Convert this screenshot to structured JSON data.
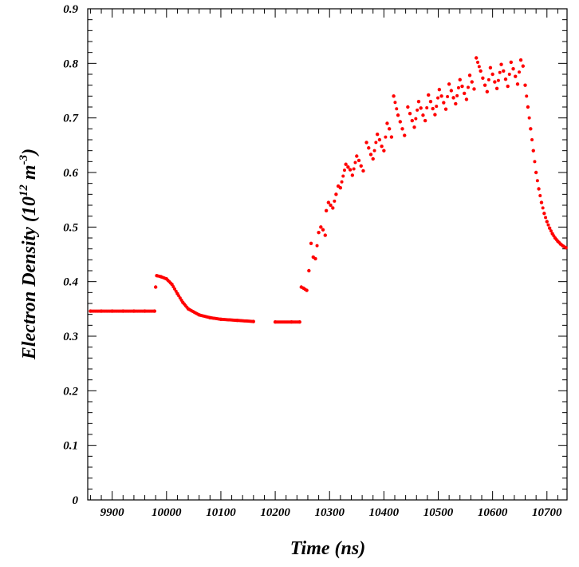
{
  "chart_data": {
    "type": "scatter",
    "title": "",
    "xlabel": "Time (ns)",
    "ylabel_parts": [
      "Electron Density (10",
      "12",
      " m",
      "-3",
      ")"
    ],
    "xlim": [
      9855,
      10737
    ],
    "ylim": [
      0,
      0.9
    ],
    "x_ticks": [
      9900,
      10000,
      10100,
      10200,
      10300,
      10400,
      10500,
      10600,
      10700
    ],
    "y_ticks": [
      0,
      0.1,
      0.2,
      0.3,
      0.4,
      0.5,
      0.6,
      0.7,
      0.8,
      0.9
    ],
    "y_tick_labels": [
      "0",
      "0.1",
      "0.2",
      "0.3",
      "0.4",
      "0.5",
      "0.6",
      "0.7",
      "0.8",
      "0.9"
    ],
    "marker_color": "#ff0000",
    "grid": false,
    "series": [
      {
        "values": [
          [
            9860,
            0.346
          ],
          [
            9880,
            0.346
          ],
          [
            9900,
            0.346
          ],
          [
            9920,
            0.346
          ],
          [
            9940,
            0.346
          ],
          [
            9960,
            0.346
          ],
          [
            9978,
            0.346
          ],
          [
            9980,
            0.39
          ],
          [
            9982,
            0.411
          ],
          [
            9990,
            0.409
          ],
          [
            10000,
            0.405
          ],
          [
            10010,
            0.395
          ],
          [
            10020,
            0.378
          ],
          [
            10030,
            0.362
          ],
          [
            10040,
            0.35
          ],
          [
            10060,
            0.339
          ],
          [
            10080,
            0.334
          ],
          [
            10100,
            0.331
          ],
          [
            10130,
            0.329
          ],
          [
            10160,
            0.327
          ],
          [
            10200,
            0.326
          ],
          [
            10230,
            0.326
          ],
          [
            10245,
            0.326
          ],
          [
            10248,
            0.39
          ],
          [
            10252,
            0.388
          ],
          [
            10258,
            0.384
          ],
          [
            10262,
            0.42
          ],
          [
            10266,
            0.47
          ],
          [
            10270,
            0.445
          ],
          [
            10274,
            0.442
          ],
          [
            10280,
            0.49
          ],
          [
            10284,
            0.5
          ],
          [
            10288,
            0.495
          ],
          [
            10292,
            0.485
          ],
          [
            10294,
            0.53
          ],
          [
            10298,
            0.545
          ],
          [
            10302,
            0.54
          ],
          [
            10306,
            0.535
          ],
          [
            10312,
            0.56
          ],
          [
            10316,
            0.575
          ],
          [
            10320,
            0.572
          ],
          [
            10330,
            0.615
          ],
          [
            10334,
            0.61
          ],
          [
            10338,
            0.605
          ],
          [
            10342,
            0.595
          ],
          [
            10350,
            0.63
          ],
          [
            10354,
            0.622
          ],
          [
            10358,
            0.612
          ],
          [
            10362,
            0.603
          ],
          [
            10368,
            0.655
          ],
          [
            10372,
            0.645
          ],
          [
            10376,
            0.633
          ],
          [
            10380,
            0.625
          ],
          [
            10388,
            0.67
          ],
          [
            10392,
            0.66
          ],
          [
            10396,
            0.648
          ],
          [
            10400,
            0.64
          ],
          [
            10406,
            0.69
          ],
          [
            10410,
            0.68
          ],
          [
            10414,
            0.665
          ],
          [
            10418,
            0.74
          ],
          [
            10426,
            0.705
          ],
          [
            10430,
            0.693
          ],
          [
            10434,
            0.68
          ],
          [
            10438,
            0.668
          ],
          [
            10444,
            0.72
          ],
          [
            10448,
            0.708
          ],
          [
            10452,
            0.695
          ],
          [
            10456,
            0.683
          ],
          [
            10464,
            0.73
          ],
          [
            10468,
            0.718
          ],
          [
            10472,
            0.705
          ],
          [
            10476,
            0.695
          ],
          [
            10482,
            0.742
          ],
          [
            10486,
            0.73
          ],
          [
            10490,
            0.717
          ],
          [
            10494,
            0.706
          ],
          [
            10502,
            0.752
          ],
          [
            10506,
            0.74
          ],
          [
            10510,
            0.728
          ],
          [
            10514,
            0.716
          ],
          [
            10520,
            0.762
          ],
          [
            10524,
            0.75
          ],
          [
            10528,
            0.737
          ],
          [
            10532,
            0.726
          ],
          [
            10540,
            0.77
          ],
          [
            10544,
            0.758
          ],
          [
            10548,
            0.745
          ],
          [
            10552,
            0.734
          ],
          [
            10558,
            0.778
          ],
          [
            10562,
            0.766
          ],
          [
            10566,
            0.753
          ],
          [
            10570,
            0.81
          ],
          [
            10578,
            0.786
          ],
          [
            10582,
            0.773
          ],
          [
            10586,
            0.76
          ],
          [
            10590,
            0.748
          ],
          [
            10596,
            0.792
          ],
          [
            10600,
            0.78
          ],
          [
            10604,
            0.766
          ],
          [
            10608,
            0.754
          ],
          [
            10616,
            0.798
          ],
          [
            10620,
            0.786
          ],
          [
            10624,
            0.771
          ],
          [
            10628,
            0.758
          ],
          [
            10634,
            0.802
          ],
          [
            10638,
            0.79
          ],
          [
            10642,
            0.776
          ],
          [
            10646,
            0.762
          ],
          [
            10652,
            0.806
          ],
          [
            10656,
            0.795
          ],
          [
            10660,
            0.76
          ],
          [
            10665,
            0.72
          ],
          [
            10670,
            0.68
          ],
          [
            10675,
            0.64
          ],
          [
            10680,
            0.6
          ],
          [
            10685,
            0.57
          ],
          [
            10690,
            0.545
          ],
          [
            10695,
            0.525
          ],
          [
            10700,
            0.51
          ],
          [
            10705,
            0.498
          ],
          [
            10710,
            0.488
          ],
          [
            10715,
            0.48
          ],
          [
            10720,
            0.474
          ],
          [
            10725,
            0.469
          ],
          [
            10730,
            0.465
          ],
          [
            10735,
            0.462
          ]
        ]
      }
    ]
  }
}
